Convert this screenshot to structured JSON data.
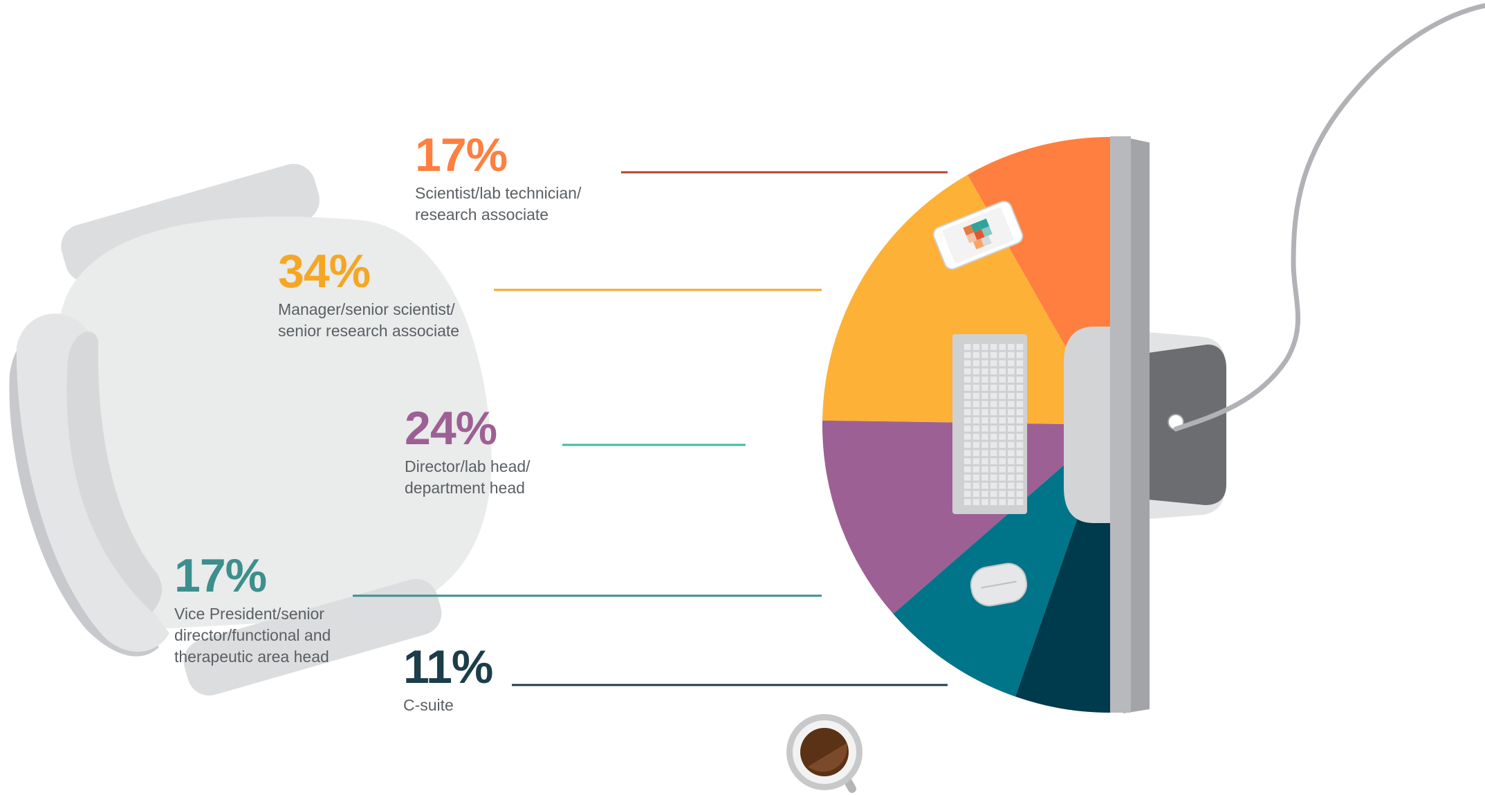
{
  "chart_data": {
    "type": "pie",
    "title": "",
    "unit": "%",
    "slices": [
      {
        "value": 17,
        "value_label": "17%",
        "label_lines": [
          "Scientist/lab technician/",
          "research associate"
        ],
        "color": "#fe7f40",
        "line_color": "#b5412d"
      },
      {
        "value": 34,
        "value_label": "34%",
        "label_lines": [
          "Manager/senior scientist/",
          "senior research associate"
        ],
        "color": "#fdb137",
        "line_color": "#f5a623"
      },
      {
        "value": 24,
        "value_label": "24%",
        "label_lines": [
          "Director/lab head/",
          "department head"
        ],
        "color": "#9d6094",
        "line_color": "#3cbf9b"
      },
      {
        "value": 17,
        "value_label": "17%",
        "label_lines": [
          "Vice President/senior",
          "director/functional and",
          "therapeutic area head"
        ],
        "color": "#007489",
        "line_color": "#3c8f8c"
      },
      {
        "value": 11,
        "value_label": "11%",
        "label_lines": [
          "C-suite"
        ],
        "color": "#003a4d",
        "line_color": "#1c3d4a"
      }
    ]
  },
  "label_colors": [
    "#fe7f40",
    "#f5a623",
    "#9d6094",
    "#3c8f8c",
    "#1c3d4a"
  ],
  "illustration": {
    "desk_items": [
      "chair",
      "monitor",
      "phone",
      "keyboard",
      "mouse",
      "coffee-cup",
      "cable"
    ],
    "icon_names": [
      "chair-icon",
      "monitor-icon",
      "phone-icon",
      "keyboard-icon",
      "mouse-icon",
      "coffee-cup-icon"
    ],
    "colors": {
      "chair": "#eaebeb",
      "chair_shade": "#dcdddf",
      "monitor_bezel": "#b8b9bc",
      "monitor_back": "#6c6d70",
      "cable": "#b1b2b5",
      "coffee": "#7b4a2a"
    }
  }
}
